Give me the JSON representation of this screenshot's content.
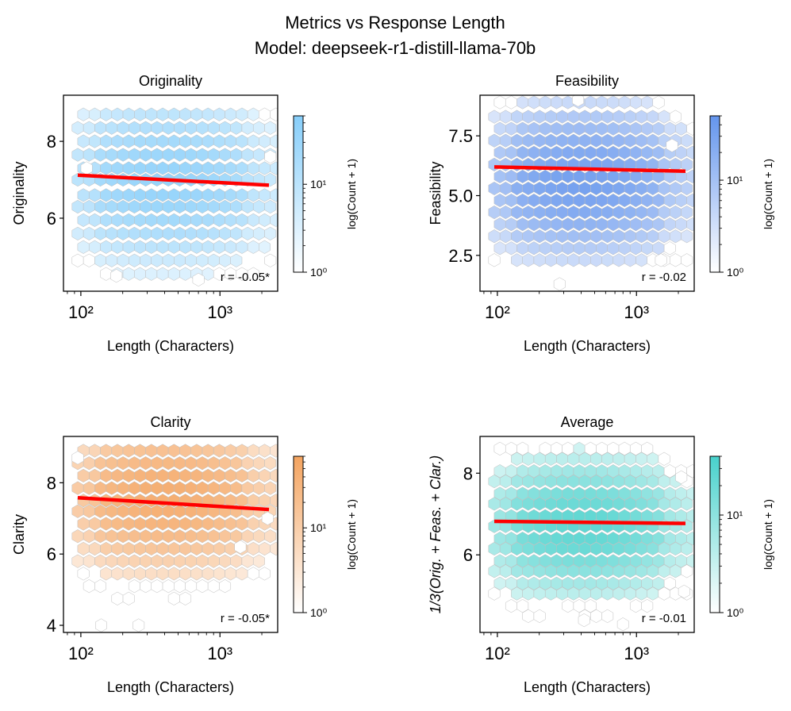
{
  "figure": {
    "title_line1": "Metrics vs Response Length",
    "title_line2": "Model: deepseek-r1-distill-llama-70b"
  },
  "chart_data": [
    {
      "type": "hexbin",
      "title": "Originality",
      "xlabel": "Length (Characters)",
      "ylabel": "Originality",
      "xscale": "log",
      "xlim": [
        75,
        2600
      ],
      "ylim": [
        4.1,
        9.2
      ],
      "yticks": [
        6,
        8
      ],
      "ytick_labels": [
        "6",
        "8"
      ],
      "xticks": [
        100,
        1000
      ],
      "xtick_labels": [
        "10²",
        "10³"
      ],
      "trend": {
        "x": [
          95,
          2250
        ],
        "y": [
          7.12,
          6.86
        ],
        "color": "#ff0000"
      },
      "annotation": "r = -0.05*",
      "colorbar": {
        "label": "log(Count + 1)",
        "ticks": [
          "10⁰",
          "10¹"
        ],
        "color": "#87cefa",
        "max_count": 60
      },
      "color": "#87cefa",
      "y_center": 6.95,
      "y_spread": 0.95,
      "y_levels": [
        8.7,
        8.35,
        8.0,
        7.65,
        7.3,
        7.0,
        6.6,
        6.3,
        5.95,
        5.6,
        5.25,
        4.9,
        4.55
      ],
      "peak_count": 45,
      "outliers": [
        [
          110,
          7.3
        ],
        [
          2300,
          7.6
        ],
        [
          180,
          4.5
        ],
        [
          700,
          4.4
        ]
      ]
    },
    {
      "type": "hexbin",
      "title": "Feasibility",
      "xlabel": "Length (Characters)",
      "ylabel": "Feasibility",
      "xscale": "log",
      "xlim": [
        75,
        2600
      ],
      "ylim": [
        1.0,
        9.2
      ],
      "yticks": [
        2.5,
        5.0,
        7.5
      ],
      "ytick_labels": [
        "2.5",
        "5.0",
        "7.5"
      ],
      "xticks": [
        100,
        1000
      ],
      "xtick_labels": [
        "10²",
        "10³"
      ],
      "trend": {
        "x": [
          95,
          2250
        ],
        "y": [
          6.2,
          6.02
        ],
        "color": "#ff0000"
      },
      "annotation": "r = -0.02",
      "colorbar": {
        "label": "log(Count + 1)",
        "ticks": [
          "10⁰",
          "10¹"
        ],
        "color": "#6495ed",
        "max_count": 50
      },
      "color": "#6495ed",
      "y_center": 5.6,
      "y_spread": 1.4,
      "y_levels": [
        8.9,
        8.3,
        7.8,
        7.3,
        6.8,
        6.3,
        5.8,
        5.3,
        4.8,
        4.3,
        3.8,
        3.3,
        2.8,
        2.3
      ],
      "peak_count": 40,
      "outliers": [
        [
          280,
          1.3
        ],
        [
          1500,
          2.3
        ],
        [
          380,
          9.0
        ],
        [
          1800,
          7.1
        ]
      ]
    },
    {
      "type": "hexbin",
      "title": "Clarity",
      "xlabel": "Length (Characters)",
      "ylabel": "Clarity",
      "xscale": "log",
      "xlim": [
        75,
        2600
      ],
      "ylim": [
        3.8,
        9.3
      ],
      "yticks": [
        4,
        6,
        8
      ],
      "ytick_labels": [
        "4",
        "6",
        "8"
      ],
      "xticks": [
        100,
        1000
      ],
      "xtick_labels": [
        "10²",
        "10³"
      ],
      "trend": {
        "x": [
          95,
          2250
        ],
        "y": [
          7.58,
          7.25
        ],
        "color": "#ff0000"
      },
      "annotation": "r = -0.05*",
      "colorbar": {
        "label": "log(Count + 1)",
        "ticks": [
          "10⁰",
          "10¹"
        ],
        "color": "#f4a460",
        "max_count": 70
      },
      "color": "#f4a460",
      "y_center": 7.6,
      "y_spread": 0.9,
      "y_levels": [
        8.9,
        8.55,
        8.2,
        7.85,
        7.5,
        7.2,
        6.85,
        6.5,
        6.15,
        5.8,
        5.45,
        5.1,
        4.75,
        4.4,
        4.0
      ],
      "peak_count": 55,
      "outliers": [
        [
          95,
          8.7
        ],
        [
          140,
          4.0
        ],
        [
          260,
          4.0
        ],
        [
          2200,
          7.0
        ],
        [
          1400,
          6.2
        ]
      ]
    },
    {
      "type": "hexbin",
      "title": "Average",
      "xlabel": "Length (Characters)",
      "ylabel": "1/3(Orig. + Feas. + Clar.)",
      "xscale": "log",
      "xlim": [
        75,
        2600
      ],
      "ylim": [
        4.1,
        8.9
      ],
      "yticks": [
        6,
        8
      ],
      "ytick_labels": [
        "6",
        "8"
      ],
      "xticks": [
        100,
        1000
      ],
      "xtick_labels": [
        "10²",
        "10³"
      ],
      "trend": {
        "x": [
          95,
          2250
        ],
        "y": [
          6.82,
          6.77
        ],
        "color": "#ff0000"
      },
      "annotation": "r = -0.01",
      "colorbar": {
        "label": "log(Count + 1)",
        "ticks": [
          "10⁰",
          "10¹"
        ],
        "color": "#48d1cc",
        "max_count": 40
      },
      "color": "#48d1cc",
      "y_center": 6.7,
      "y_spread": 0.75,
      "y_levels": [
        8.6,
        8.35,
        8.05,
        7.8,
        7.5,
        7.25,
        6.95,
        6.7,
        6.4,
        6.15,
        5.85,
        5.6,
        5.3,
        5.05,
        4.75,
        4.5
      ],
      "peak_count": 30,
      "outliers": [
        [
          2100,
          7.9
        ],
        [
          420,
          4.4
        ],
        [
          800,
          4.3
        ],
        [
          2200,
          5.1
        ]
      ]
    }
  ]
}
